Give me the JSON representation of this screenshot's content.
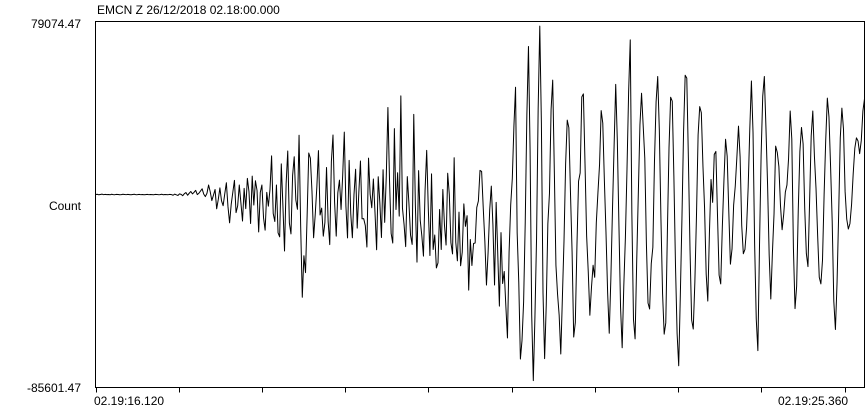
{
  "header": {
    "title": "EMCN Z  26/12/2018  02.18:00.000"
  },
  "chart_data": {
    "type": "line",
    "title": "EMCN Z  26/12/2018  02.18:00.000",
    "ylabel": "Count",
    "ylim": [
      -85601.47,
      79074.47
    ],
    "ylim_labels": {
      "max": "79074.47",
      "min": "-85601.47"
    },
    "xlim_labels": {
      "start": "02.19:16.120",
      "end": "02.19:25.360"
    },
    "x_start_seconds": 0,
    "x_end_seconds": 9.24,
    "grid": false,
    "series": [
      {
        "values": [
          1200,
          1350,
          1100,
          1250,
          1400,
          1150,
          1300,
          1200,
          1250,
          1100,
          1350,
          1200,
          1150,
          1300,
          1250,
          1100,
          1200,
          1350,
          1250,
          1150,
          1300,
          1200,
          1100,
          1250,
          1350,
          1150,
          1200,
          1300,
          1150,
          1250,
          1100,
          1200,
          1300,
          1150,
          1250,
          1200,
          1100,
          1300,
          1250,
          1150,
          1200,
          1350,
          1100,
          1250,
          1200,
          1150,
          1300,
          1200,
          900,
          1400,
          1100,
          800,
          1500,
          1300,
          700,
          1600,
          2100,
          900,
          1800,
          2600,
          1500,
          2200,
          3100,
          1200,
          1800,
          2800,
          3800,
          1400,
          300,
          1800,
          5500,
          2500,
          -1500,
          900,
          3500,
          -5200,
          -1000,
          4200,
          -1600,
          -3800,
          1500,
          6500,
          -4200,
          -11500,
          -3200,
          2200,
          7600,
          -6900,
          -3900,
          5500,
          -2500,
          -10700,
          4000,
          -5100,
          8500,
          2500,
          -11800,
          9500,
          -3500,
          7400,
          3000,
          -15600,
          2200,
          5500,
          -9200,
          -14800,
          2200,
          -4000,
          3500,
          18600,
          -7300,
          -10900,
          5500,
          -16000,
          -17800,
          15000,
          -3800,
          -24200,
          6100,
          20800,
          -11600,
          -16500,
          9800,
          18200,
          -1200,
          -5400,
          27900,
          -13100,
          -45000,
          -26300,
          -33900,
          -8100,
          19900,
          17600,
          2600,
          -18200,
          -7900,
          4500,
          21000,
          -8000,
          -4900,
          -17500,
          -11400,
          13400,
          -10900,
          -21300,
          16000,
          28000,
          -2300,
          -17500,
          2000,
          7700,
          -5500,
          9800,
          29300,
          -4000,
          -18300,
          16600,
          -7500,
          -18200,
          1200,
          12600,
          -13900,
          2200,
          16300,
          -9700,
          -9600,
          -12700,
          -22400,
          17600,
          1300,
          -4700,
          8200,
          -6800,
          -23600,
          9200,
          -2400,
          -18100,
          12400,
          -11300,
          9600,
          40400,
          7400,
          -16300,
          -20600,
          30900,
          -5500,
          11000,
          -8500,
          45600,
          -4800,
          -12300,
          -22200,
          9300,
          -2700,
          -17000,
          -21200,
          37300,
          -3700,
          -29200,
          12000,
          -10300,
          -17400,
          -26500,
          3100,
          21100,
          -5200,
          -26200,
          10500,
          -23500,
          -17000,
          -31800,
          -29500,
          -5500,
          -23500,
          3500,
          -12500,
          -21500,
          10800,
          1300,
          -20500,
          -25500,
          17800,
          -20200,
          -28600,
          -6700,
          -30800,
          -24800,
          -3000,
          -13100,
          -8300,
          -41800,
          -19000,
          -30700,
          -20800,
          -20600,
          -4600,
          -1700,
          12100,
          11600,
          -4700,
          -19800,
          -39500,
          -25000,
          -5700,
          5000,
          -12500,
          -39500,
          -2300,
          -25700,
          -49000,
          -15900,
          -38800,
          -33400,
          -49000,
          -63300,
          -24800,
          -3500,
          8500,
          32200,
          49500,
          -16000,
          -38200,
          -72800,
          -64500,
          -47000,
          -11200,
          36700,
          67800,
          21400,
          -52900,
          -82500,
          -53900,
          -18800,
          39900,
          77000,
          33300,
          -43000,
          -72600,
          -48600,
          -12000,
          1800,
          39400,
          52700,
          12000,
          -30600,
          -43600,
          -53100,
          -70500,
          -45100,
          -19500,
          15000,
          34700,
          31300,
          2100,
          -24700,
          -62900,
          -56400,
          -22100,
          7200,
          10900,
          45100,
          46500,
          15200,
          -17400,
          -33400,
          -53100,
          -40600,
          -30600,
          -36000,
          -11300,
          2000,
          14700,
          39000,
          33300,
          7200,
          -16200,
          -43000,
          -61200,
          -36600,
          -5700,
          22900,
          50800,
          25500,
          -12800,
          -49500,
          -67700,
          -40200,
          -18100,
          12900,
          47400,
          70800,
          -7300,
          -55000,
          -63700,
          -28700,
          1700,
          32600,
          46800,
          32300,
          17600,
          -21000,
          -47600,
          -50300,
          -29900,
          -22500,
          16200,
          42900,
          54300,
          30200,
          -9800,
          -43300,
          -61600,
          -56500,
          -15200,
          22400,
          45000,
          43200,
          9600,
          -30500,
          -61300,
          -75800,
          -44100,
          -9700,
          29400,
          54900,
          53600,
          17000,
          -23500,
          -55200,
          -59300,
          -38000,
          -8300,
          28000,
          40800,
          38000,
          14000,
          -4700,
          -34600,
          -46700,
          -16300,
          8000,
          -2300,
          19300,
          20600,
          -8000,
          -35000,
          -39000,
          -13400,
          7700,
          26100,
          18400,
          -6400,
          -30100,
          -23200,
          -3500,
          5000,
          18000,
          32000,
          18200,
          -12700,
          -25400,
          -23500,
          -13700,
          4600,
          30800,
          52300,
          29100,
          -21400,
          -54900,
          -69000,
          -22100,
          18900,
          45400,
          54300,
          31300,
          5700,
          -26100,
          -45800,
          -25000,
          -7500,
          23000,
          20200,
          13800,
          -3800,
          -14600,
          -7600,
          2300,
          5500,
          17500,
          38800,
          26200,
          -23100,
          -50100,
          -40000,
          -5800,
          20600,
          31400,
          24000,
          -5000,
          -25300,
          -31200,
          -2500,
          27500,
          38800,
          18400,
          3800,
          -17300,
          -36000,
          -39000,
          -28300,
          1200,
          25900,
          44600,
          36200,
          14000,
          -10800,
          -46800,
          -59500,
          -38600,
          -7900,
          26700,
          40100,
          30600,
          2500,
          -9800,
          -14300,
          -11800,
          -3200,
          10500,
          22000,
          26700,
          25300,
          19600,
          25500,
          38700,
          44300
        ]
      }
    ]
  }
}
